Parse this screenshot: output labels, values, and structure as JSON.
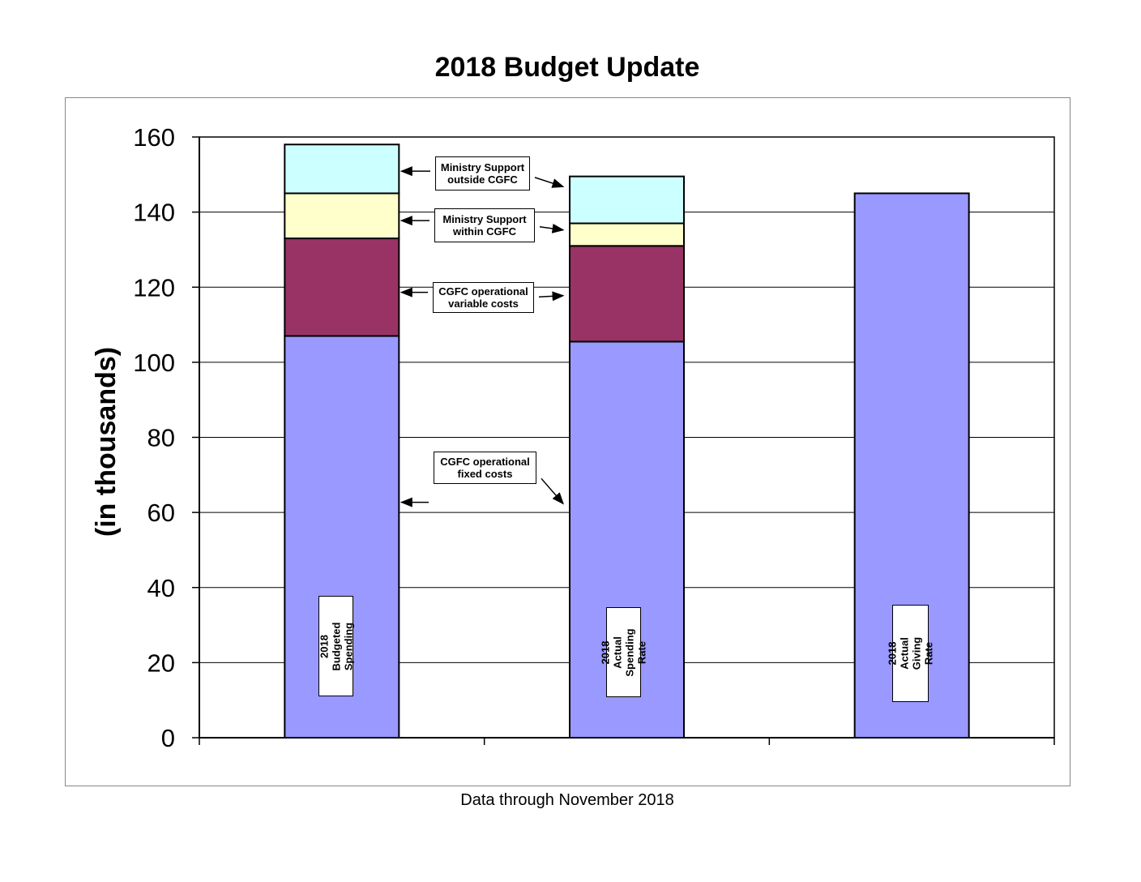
{
  "chart_data": {
    "type": "bar",
    "stacked": true,
    "title": "2018 Budget Update",
    "ylabel": "(in thousands)",
    "xlabel": "",
    "footnote": "Data through November 2018",
    "ylim": [
      0,
      160
    ],
    "yticks": [
      0,
      20,
      40,
      60,
      80,
      100,
      120,
      140,
      160
    ],
    "grid": true,
    "categories": [
      "2018  Budgeted\nSpending",
      "2018 Actual\nSpending Rate",
      "2018 Actual\nGiving Rate"
    ],
    "series": [
      {
        "name": "CGFC operational\nfixed costs",
        "color": "#9999ff",
        "values": [
          107,
          105.5,
          145
        ]
      },
      {
        "name": "CGFC operational\nvariable costs",
        "color": "#993366",
        "values": [
          26,
          25.5,
          0
        ]
      },
      {
        "name": "Ministry Support\nwithin  CGFC",
        "color": "#ffffcc",
        "values": [
          12,
          6,
          0
        ]
      },
      {
        "name": "Ministry Support\noutside CGFC",
        "color": "#ccffff",
        "values": [
          13,
          12.5,
          0
        ]
      }
    ]
  }
}
